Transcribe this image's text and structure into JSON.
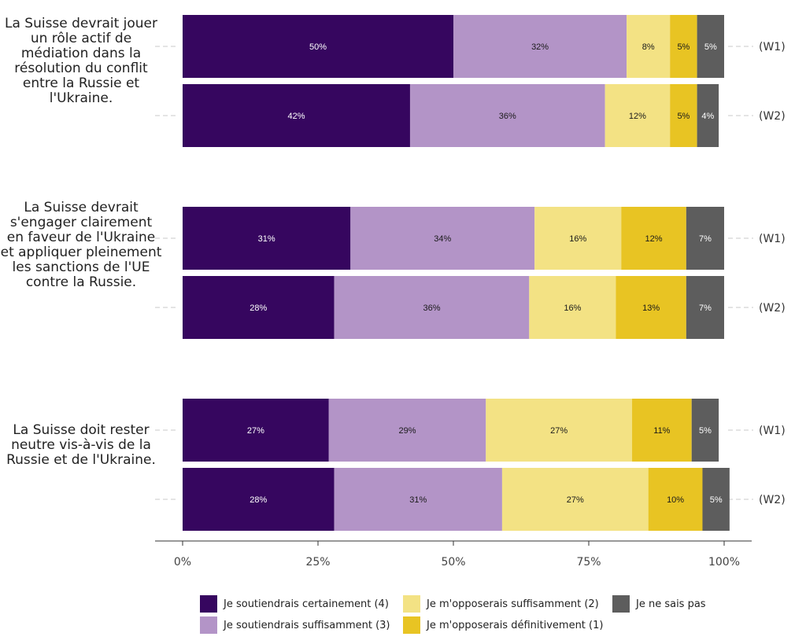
{
  "chart_data": {
    "type": "bar",
    "orientation": "horizontal",
    "stacked": true,
    "xlim": [
      0,
      100
    ],
    "ticks": [
      "0%",
      "25%",
      "50%",
      "75%",
      "100%"
    ],
    "groups": [
      {
        "label": "La Suisse devrait jouer un rôle actif de médiation dans la résolution du conflit entre la Russie et l'Ukraine.",
        "bars": [
          {
            "wave": "(W1)",
            "values": [
              50,
              32,
              8,
              5,
              5
            ],
            "labels": [
              "50%",
              "32%",
              "8%",
              "5%",
              "5%"
            ]
          },
          {
            "wave": "(W2)",
            "values": [
              42,
              36,
              12,
              5,
              4
            ],
            "labels": [
              "42%",
              "36%",
              "12%",
              "5%",
              "4%"
            ]
          }
        ]
      },
      {
        "label": "La Suisse devrait s'engager clairement en faveur de l'Ukraine et appliquer pleinement les sanctions de l'UE contre la Russie.",
        "bars": [
          {
            "wave": "(W1)",
            "values": [
              31,
              34,
              16,
              12,
              7
            ],
            "labels": [
              "31%",
              "34%",
              "16%",
              "12%",
              "7%"
            ]
          },
          {
            "wave": "(W2)",
            "values": [
              28,
              36,
              16,
              13,
              7
            ],
            "labels": [
              "28%",
              "36%",
              "16%",
              "13%",
              "7%"
            ]
          }
        ]
      },
      {
        "label": "La Suisse doit rester neutre vis-à-vis de la Russie et de l'Ukraine.",
        "bars": [
          {
            "wave": "(W1)",
            "values": [
              27,
              29,
              27,
              11,
              5
            ],
            "labels": [
              "27%",
              "29%",
              "27%",
              "11%",
              "5%"
            ]
          },
          {
            "wave": "(W2)",
            "values": [
              28,
              31,
              27,
              10,
              5
            ],
            "labels": [
              "28%",
              "31%",
              "27%",
              "10%",
              "5%"
            ]
          }
        ]
      }
    ],
    "series": [
      {
        "name": "Je soutiendrais certainement (4)",
        "color": "#36065f",
        "label_color": "#ffffff"
      },
      {
        "name": "Je soutiendrais suffisamment (3)",
        "color": "#b394c7",
        "label_color": "#1a1a1a"
      },
      {
        "name": "Je m'opposerais suffisamment (2)",
        "color": "#f3e284",
        "label_color": "#1a1a1a"
      },
      {
        "name": "Je m'opposerais définitivement (1)",
        "color": "#e8c423",
        "label_color": "#1a1a1a"
      },
      {
        "name": "Je ne sais pas",
        "color": "#5d5d5d",
        "label_color": "#ffffff"
      }
    ],
    "legend_position": "bottom",
    "grid": false
  }
}
